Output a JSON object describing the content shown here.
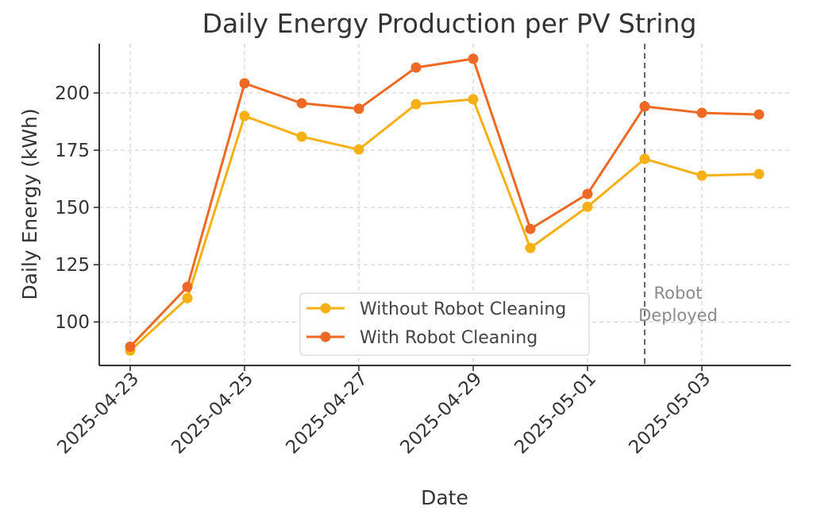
{
  "chart_data": {
    "type": "line",
    "title": "Daily Energy Production per PV String",
    "xlabel": "Date",
    "ylabel": "Daily Energy (kWh)",
    "x": [
      "2025-04-23",
      "2025-04-24",
      "2025-04-25",
      "2025-04-26",
      "2025-04-27",
      "2025-04-28",
      "2025-04-29",
      "2025-04-30",
      "2025-05-01",
      "2025-05-02",
      "2025-05-03",
      "2025-05-04"
    ],
    "x_tick_labels": [
      "2025-04-23",
      "2025-04-25",
      "2025-04-27",
      "2025-04-29",
      "2025-05-01",
      "2025-05-03"
    ],
    "y_ticks": [
      100,
      125,
      150,
      175,
      200
    ],
    "ylim": [
      81,
      221.5
    ],
    "grid": true,
    "legend_position": "lower-center",
    "series": [
      {
        "name": "Without Robot Cleaning",
        "color": "#F5B014",
        "values": [
          87.5,
          110.4,
          189.9,
          180.9,
          175.3,
          195.1,
          197.2,
          132.3,
          150.3,
          171.2,
          163.9,
          164.6
        ]
      },
      {
        "name": "With Robot Cleaning",
        "color": "#EE6A24",
        "values": [
          89.2,
          115.3,
          204.2,
          195.5,
          193.1,
          211.1,
          214.9,
          140.6,
          155.9,
          194.1,
          191.3,
          190.6
        ]
      }
    ],
    "annotations": [
      {
        "type": "vertical-line",
        "x": "2025-05-02",
        "label_lines": [
          "Robot",
          "Deployed"
        ],
        "color": "#8a8a8a"
      }
    ]
  }
}
